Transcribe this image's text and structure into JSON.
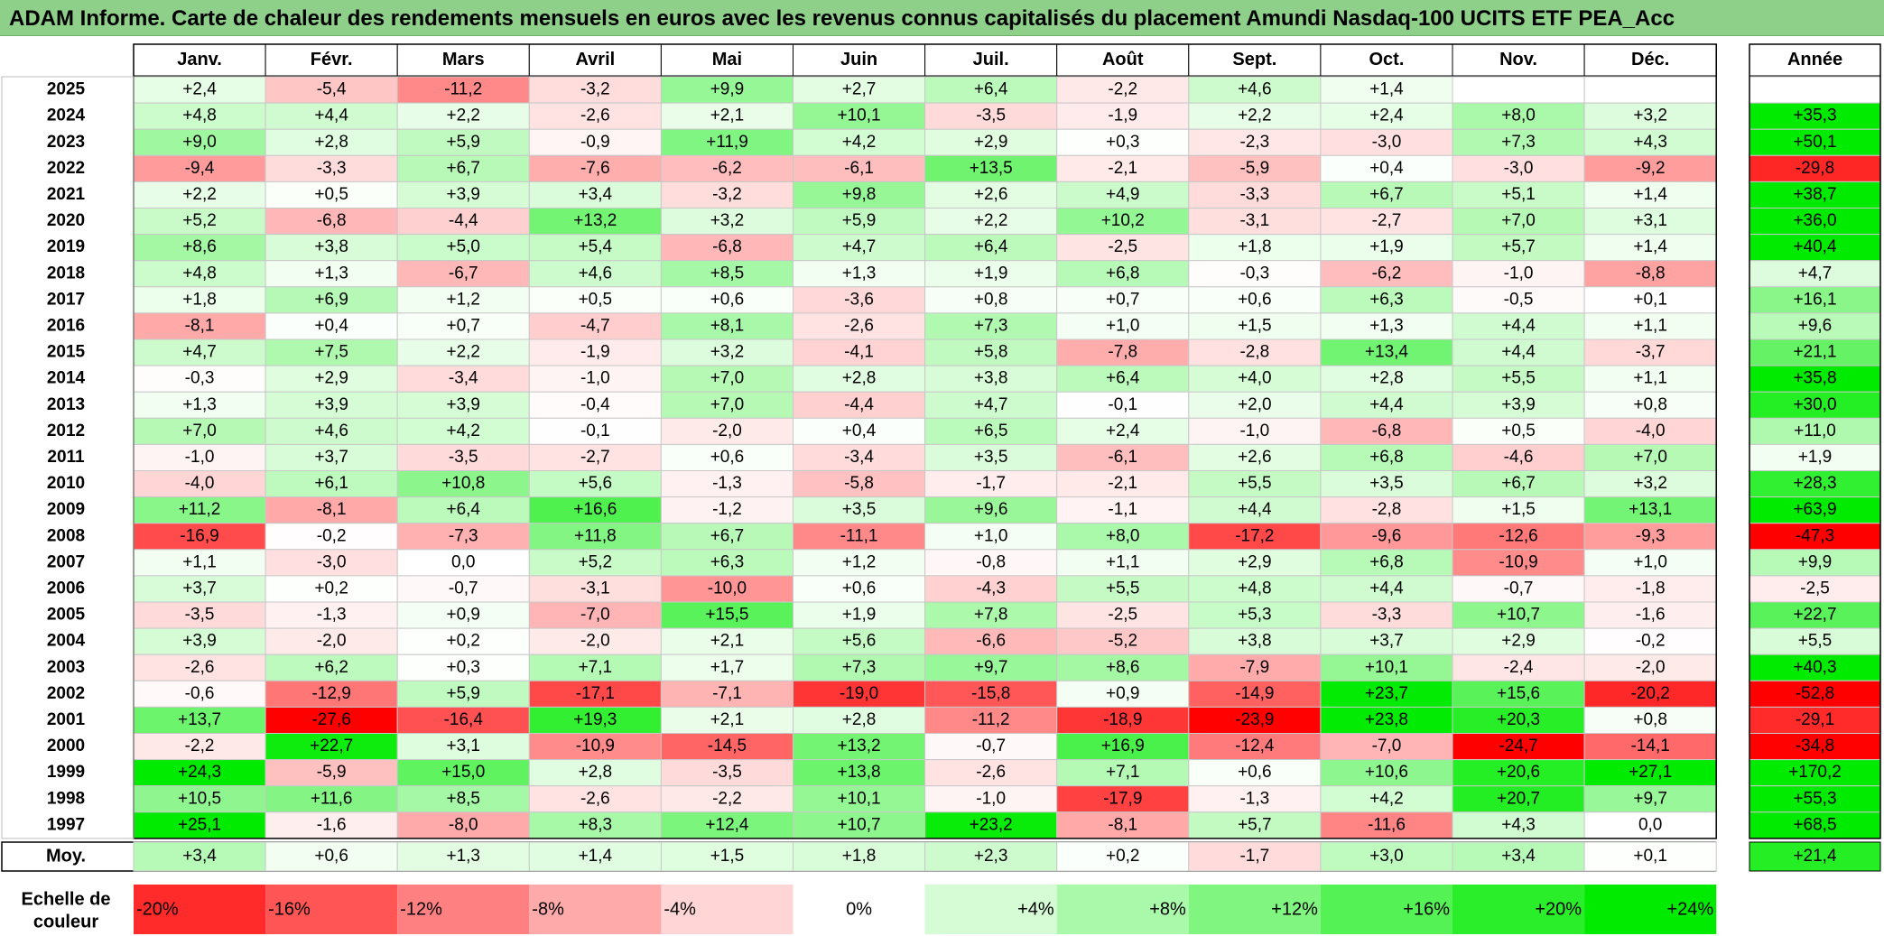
{
  "chart_data": {
    "type": "heatmap",
    "title": "ADAM Informe. Carte de chaleur des rendements mensuels en euros avec les revenus connus capitalisés du placement Amundi Nasdaq-100 UCITS ETF PEA_Acc",
    "months": [
      "Janv.",
      "Févr.",
      "Mars",
      "Avril",
      "Mai",
      "Juin",
      "Juil.",
      "Août",
      "Sept.",
      "Oct.",
      "Nov.",
      "Déc."
    ],
    "year_column_label": "Année",
    "average_label": "Moy.",
    "rows": [
      {
        "year": "2025",
        "values": [
          "+2,4",
          "-5,4",
          "-11,2",
          "-3,2",
          "+9,9",
          "+2,7",
          "+6,4",
          "-2,2",
          "+4,6",
          "+1,4",
          "",
          ""
        ],
        "annual": ""
      },
      {
        "year": "2024",
        "values": [
          "+4,8",
          "+4,4",
          "+2,2",
          "-2,6",
          "+2,1",
          "+10,1",
          "-3,5",
          "-1,9",
          "+2,2",
          "+2,4",
          "+8,0",
          "+3,2"
        ],
        "annual": "+35,3"
      },
      {
        "year": "2023",
        "values": [
          "+9,0",
          "+2,8",
          "+5,9",
          "-0,9",
          "+11,9",
          "+4,2",
          "+2,9",
          "+0,3",
          "-2,3",
          "-3,0",
          "+7,3",
          "+4,3"
        ],
        "annual": "+50,1"
      },
      {
        "year": "2022",
        "values": [
          "-9,4",
          "-3,3",
          "+6,7",
          "-7,6",
          "-6,2",
          "-6,1",
          "+13,5",
          "-2,1",
          "-5,9",
          "+0,4",
          "-3,0",
          "-9,2"
        ],
        "annual": "-29,8"
      },
      {
        "year": "2021",
        "values": [
          "+2,2",
          "+0,5",
          "+3,9",
          "+3,4",
          "-3,2",
          "+9,8",
          "+2,6",
          "+4,9",
          "-3,3",
          "+6,7",
          "+5,1",
          "+1,4"
        ],
        "annual": "+38,7"
      },
      {
        "year": "2020",
        "values": [
          "+5,2",
          "-6,8",
          "-4,4",
          "+13,2",
          "+3,2",
          "+5,9",
          "+2,2",
          "+10,2",
          "-3,1",
          "-2,7",
          "+7,0",
          "+3,1"
        ],
        "annual": "+36,0"
      },
      {
        "year": "2019",
        "values": [
          "+8,6",
          "+3,8",
          "+5,0",
          "+5,4",
          "-6,8",
          "+4,7",
          "+6,4",
          "-2,5",
          "+1,8",
          "+1,9",
          "+5,7",
          "+1,4"
        ],
        "annual": "+40,4"
      },
      {
        "year": "2018",
        "values": [
          "+4,8",
          "+1,3",
          "-6,7",
          "+4,6",
          "+8,5",
          "+1,3",
          "+1,9",
          "+6,8",
          "-0,3",
          "-6,2",
          "-1,0",
          "-8,8"
        ],
        "annual": "+4,7"
      },
      {
        "year": "2017",
        "values": [
          "+1,8",
          "+6,9",
          "+1,2",
          "+0,5",
          "+0,6",
          "-3,6",
          "+0,8",
          "+0,7",
          "+0,6",
          "+6,3",
          "-0,5",
          "+0,1"
        ],
        "annual": "+16,1"
      },
      {
        "year": "2016",
        "values": [
          "-8,1",
          "+0,4",
          "+0,7",
          "-4,7",
          "+8,1",
          "-2,6",
          "+7,3",
          "+1,0",
          "+1,5",
          "+1,3",
          "+4,4",
          "+1,1"
        ],
        "annual": "+9,6"
      },
      {
        "year": "2015",
        "values": [
          "+4,7",
          "+7,5",
          "+2,2",
          "-1,9",
          "+3,2",
          "-4,1",
          "+5,8",
          "-7,8",
          "-2,8",
          "+13,4",
          "+4,4",
          "-3,7"
        ],
        "annual": "+21,1"
      },
      {
        "year": "2014",
        "values": [
          "-0,3",
          "+2,9",
          "-3,4",
          "-1,0",
          "+7,0",
          "+2,8",
          "+3,8",
          "+6,4",
          "+4,0",
          "+2,8",
          "+5,5",
          "+1,1"
        ],
        "annual": "+35,8"
      },
      {
        "year": "2013",
        "values": [
          "+1,3",
          "+3,9",
          "+3,9",
          "-0,4",
          "+7,0",
          "-4,4",
          "+4,7",
          "-0,1",
          "+2,0",
          "+4,4",
          "+3,9",
          "+0,8"
        ],
        "annual": "+30,0"
      },
      {
        "year": "2012",
        "values": [
          "+7,0",
          "+4,6",
          "+4,2",
          "-0,1",
          "-2,0",
          "+0,4",
          "+6,5",
          "+2,4",
          "-1,0",
          "-6,8",
          "+0,5",
          "-4,0"
        ],
        "annual": "+11,0"
      },
      {
        "year": "2011",
        "values": [
          "-1,0",
          "+3,7",
          "-3,5",
          "-2,7",
          "+0,6",
          "-3,4",
          "+3,5",
          "-6,1",
          "+2,6",
          "+6,8",
          "-4,6",
          "+7,0"
        ],
        "annual": "+1,9"
      },
      {
        "year": "2010",
        "values": [
          "-4,0",
          "+6,1",
          "+10,8",
          "+5,6",
          "-1,3",
          "-5,8",
          "-1,7",
          "-2,1",
          "+5,5",
          "+3,5",
          "+6,7",
          "+3,2"
        ],
        "annual": "+28,3"
      },
      {
        "year": "2009",
        "values": [
          "+11,2",
          "-8,1",
          "+6,4",
          "+16,6",
          "-1,2",
          "+3,5",
          "+9,6",
          "-1,1",
          "+4,4",
          "-2,8",
          "+1,5",
          "+13,1"
        ],
        "annual": "+63,9"
      },
      {
        "year": "2008",
        "values": [
          "-16,9",
          "-0,2",
          "-7,3",
          "+11,8",
          "+6,7",
          "-11,1",
          "+1,0",
          "+8,0",
          "-17,2",
          "-9,6",
          "-12,6",
          "-9,3"
        ],
        "annual": "-47,3"
      },
      {
        "year": "2007",
        "values": [
          "+1,1",
          "-3,0",
          "0,0",
          "+5,2",
          "+6,3",
          "+1,2",
          "-0,8",
          "+1,1",
          "+2,9",
          "+6,8",
          "-10,9",
          "+1,0"
        ],
        "annual": "+9,9"
      },
      {
        "year": "2006",
        "values": [
          "+3,7",
          "+0,2",
          "-0,7",
          "-3,1",
          "-10,0",
          "+0,6",
          "-4,3",
          "+5,5",
          "+4,8",
          "+4,4",
          "-0,7",
          "-1,8"
        ],
        "annual": "-2,5"
      },
      {
        "year": "2005",
        "values": [
          "-3,5",
          "-1,3",
          "+0,9",
          "-7,0",
          "+15,5",
          "+1,9",
          "+7,8",
          "-2,5",
          "+5,3",
          "-3,3",
          "+10,7",
          "-1,6"
        ],
        "annual": "+22,7"
      },
      {
        "year": "2004",
        "values": [
          "+3,9",
          "-2,0",
          "+0,2",
          "-2,0",
          "+2,1",
          "+5,6",
          "-6,6",
          "-5,2",
          "+3,8",
          "+3,7",
          "+2,9",
          "-0,2"
        ],
        "annual": "+5,5"
      },
      {
        "year": "2003",
        "values": [
          "-2,6",
          "+6,2",
          "+0,3",
          "+7,1",
          "+1,7",
          "+7,3",
          "+9,7",
          "+8,6",
          "-7,9",
          "+10,1",
          "-2,4",
          "-2,0"
        ],
        "annual": "+40,3"
      },
      {
        "year": "2002",
        "values": [
          "-0,6",
          "-12,9",
          "+5,9",
          "-17,1",
          "-7,1",
          "-19,0",
          "-15,8",
          "+0,9",
          "-14,9",
          "+23,7",
          "+15,6",
          "-20,2"
        ],
        "annual": "-52,8"
      },
      {
        "year": "2001",
        "values": [
          "+13,7",
          "-27,6",
          "-16,4",
          "+19,3",
          "+2,1",
          "+2,8",
          "-11,2",
          "-18,9",
          "-23,9",
          "+23,8",
          "+20,3",
          "+0,8"
        ],
        "annual": "-29,1"
      },
      {
        "year": "2000",
        "values": [
          "-2,2",
          "+22,7",
          "+3,1",
          "-10,9",
          "-14,5",
          "+13,2",
          "-0,7",
          "+16,9",
          "-12,4",
          "-7,0",
          "-24,7",
          "-14,1"
        ],
        "annual": "-34,8"
      },
      {
        "year": "1999",
        "values": [
          "+24,3",
          "-5,9",
          "+15,0",
          "+2,8",
          "-3,5",
          "+13,8",
          "-2,6",
          "+7,1",
          "+0,6",
          "+10,6",
          "+20,6",
          "+27,1"
        ],
        "annual": "+170,2"
      },
      {
        "year": "1998",
        "values": [
          "+10,5",
          "+11,6",
          "+8,5",
          "-2,6",
          "-2,2",
          "+10,1",
          "-1,0",
          "-17,9",
          "-1,3",
          "+4,2",
          "+20,7",
          "+9,7"
        ],
        "annual": "+55,3"
      },
      {
        "year": "1997",
        "values": [
          "+25,1",
          "-1,6",
          "-8,0",
          "+8,3",
          "+12,4",
          "+10,7",
          "+23,2",
          "-8,1",
          "+5,7",
          "-11,6",
          "+4,3",
          "0,0"
        ],
        "annual": "+68,5"
      }
    ],
    "average": {
      "values": [
        "+3,4",
        "+0,6",
        "+1,3",
        "+1,4",
        "+1,5",
        "+1,8",
        "+2,3",
        "+0,2",
        "-1,7",
        "+3,0",
        "+3,4",
        "+0,1"
      ],
      "annual": "+21,4"
    },
    "color_scale": {
      "label": [
        "Echelle de",
        "couleur"
      ],
      "stops": [
        "-20%",
        "-16%",
        "-12%",
        "-8%",
        "-4%",
        "0%",
        "+4%",
        "+8%",
        "+12%",
        "+16%",
        "+20%",
        "+24%"
      ],
      "negative_color": "#ff0000",
      "positive_color": "#00e600",
      "zero_color": "#ffffff"
    }
  }
}
